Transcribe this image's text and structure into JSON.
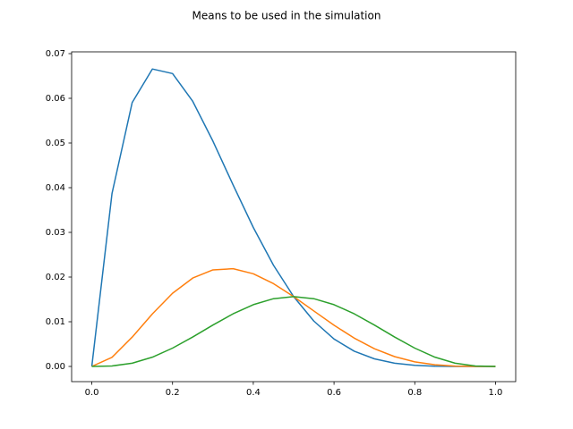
{
  "chart_data": {
    "type": "line",
    "title": "Means to be used in the simulation",
    "x": [
      0,
      0.05,
      0.1,
      0.15,
      0.2,
      0.25,
      0.3,
      0.35,
      0.4,
      0.45,
      0.5,
      0.55,
      0.6,
      0.65,
      0.7,
      0.75,
      0.8,
      0.85,
      0.9,
      0.95,
      1
    ],
    "series": [
      {
        "color": "#1f77b4",
        "values": [
          0,
          0.03869,
          0.05905,
          0.06656,
          0.06554,
          0.05933,
          0.05042,
          0.04061,
          0.0311,
          0.02265,
          0.01563,
          0.01015,
          0.00614,
          0.00341,
          0.0017,
          0.00073,
          0.00026,
          6e-05,
          1e-05,
          0,
          0
        ]
      },
      {
        "color": "#ff7f0e",
        "values": [
          0,
          0.00204,
          0.00656,
          0.01175,
          0.01638,
          0.01978,
          0.02161,
          0.02187,
          0.02074,
          0.01853,
          0.01563,
          0.01241,
          0.00922,
          0.00634,
          0.00397,
          0.0022,
          0.00102,
          0.00037,
          8e-05,
          1e-05,
          0
        ]
      },
      {
        "color": "#2ca02c",
        "values": [
          0,
          0.00011,
          0.00073,
          0.00207,
          0.0041,
          0.00659,
          0.00926,
          0.01178,
          0.01382,
          0.01516,
          0.01563,
          0.01516,
          0.01382,
          0.01178,
          0.00926,
          0.00659,
          0.0041,
          0.00207,
          0.00073,
          0.00011,
          0
        ]
      }
    ],
    "xlim": [
      -0.05,
      1.05
    ],
    "xticks": [
      {
        "value": 0,
        "label": "0.0"
      },
      {
        "value": 0.2,
        "label": "0.2"
      },
      {
        "value": 0.4,
        "label": "0.4"
      },
      {
        "value": 0.6,
        "label": "0.6"
      },
      {
        "value": 0.8,
        "label": "0.8"
      },
      {
        "value": 1,
        "label": "1.0"
      }
    ],
    "ylim": [
      -0.0034,
      0.0704
    ],
    "yticks": [
      {
        "value": 0,
        "label": "0.00"
      },
      {
        "value": 0.01,
        "label": "0.01"
      },
      {
        "value": 0.02,
        "label": "0.02"
      },
      {
        "value": 0.03,
        "label": "0.03"
      },
      {
        "value": 0.04,
        "label": "0.04"
      },
      {
        "value": 0.05,
        "label": "0.05"
      },
      {
        "value": 0.06,
        "label": "0.06"
      },
      {
        "value": 0.07,
        "label": "0.07"
      }
    ],
    "grid": false
  }
}
